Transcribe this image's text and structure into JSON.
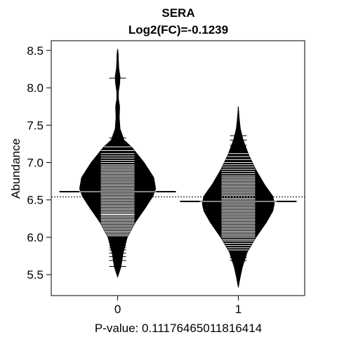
{
  "chart_data": {
    "type": "beanplot",
    "title": "SERA",
    "subtitle": "Log2(FC)=-0.1239",
    "xlabel": "P-value: 0.11176465011816414",
    "ylabel": "Abundance",
    "categories": [
      "0",
      "1"
    ],
    "ylim": [
      5.22,
      8.63
    ],
    "xlim": [
      0.45,
      2.55
    ],
    "yticks": [
      "5.5",
      "6.0",
      "6.5",
      "7.0",
      "7.5",
      "8.0",
      "8.5"
    ],
    "overall_mean": 6.54,
    "grid": false,
    "series": [
      {
        "group": "0",
        "mean": 6.61,
        "ymin": 5.47,
        "ymax": 8.52,
        "density_y": [
          5.47,
          5.6,
          5.8,
          6.0,
          6.2,
          6.4,
          6.55,
          6.65,
          6.8,
          7.0,
          7.2,
          7.3,
          7.45,
          7.6,
          7.75,
          7.85,
          7.95,
          8.05,
          8.15,
          8.25,
          8.35,
          8.45,
          8.52
        ],
        "density_w": [
          0.0,
          0.08,
          0.14,
          0.24,
          0.44,
          0.7,
          0.88,
          0.95,
          0.9,
          0.66,
          0.36,
          0.16,
          0.06,
          0.04,
          0.05,
          0.02,
          0.02,
          0.05,
          0.06,
          0.03,
          0.02,
          0.015,
          0.0
        ],
        "obs": [
          5.61,
          5.69,
          5.74,
          5.79,
          5.83,
          5.86,
          5.89,
          5.92,
          5.95,
          5.97,
          6.0,
          6.02,
          6.04,
          6.06,
          6.08,
          6.1,
          6.12,
          6.14,
          6.16,
          6.18,
          6.2,
          6.22,
          6.24,
          6.26,
          6.28,
          6.3,
          6.31,
          6.33,
          6.35,
          6.37,
          6.39,
          6.41,
          6.43,
          6.45,
          6.47,
          6.49,
          6.51,
          6.53,
          6.55,
          6.57,
          6.59,
          6.61,
          6.63,
          6.65,
          6.67,
          6.69,
          6.71,
          6.73,
          6.75,
          6.77,
          6.79,
          6.81,
          6.83,
          6.85,
          6.87,
          6.89,
          6.91,
          6.93,
          6.95,
          6.97,
          7.0,
          7.03,
          7.06,
          7.09,
          7.12,
          7.16,
          7.21,
          7.27,
          7.33,
          8.13
        ]
      },
      {
        "group": "1",
        "mean": 6.48,
        "ymin": 5.33,
        "ymax": 7.75,
        "density_y": [
          5.33,
          5.45,
          5.6,
          5.8,
          6.0,
          6.2,
          6.35,
          6.45,
          6.55,
          6.7,
          6.9,
          7.1,
          7.3,
          7.45,
          7.6,
          7.75
        ],
        "density_w": [
          0.0,
          0.04,
          0.1,
          0.22,
          0.44,
          0.7,
          0.86,
          0.9,
          0.86,
          0.66,
          0.44,
          0.26,
          0.12,
          0.05,
          0.02,
          0.0
        ],
        "obs": [
          5.69,
          5.73,
          5.77,
          5.8,
          5.83,
          5.86,
          5.89,
          5.92,
          5.95,
          5.97,
          6.0,
          6.02,
          6.04,
          6.06,
          6.08,
          6.1,
          6.12,
          6.14,
          6.16,
          6.18,
          6.2,
          6.22,
          6.24,
          6.26,
          6.28,
          6.3,
          6.32,
          6.34,
          6.36,
          6.38,
          6.4,
          6.42,
          6.44,
          6.46,
          6.48,
          6.5,
          6.52,
          6.54,
          6.56,
          6.58,
          6.6,
          6.62,
          6.64,
          6.66,
          6.68,
          6.7,
          6.72,
          6.74,
          6.76,
          6.78,
          6.8,
          6.82,
          6.85,
          6.88,
          6.91,
          6.94,
          6.97,
          7.0,
          7.04,
          7.08,
          7.12,
          7.17,
          7.23,
          7.3,
          7.36
        ]
      }
    ]
  }
}
